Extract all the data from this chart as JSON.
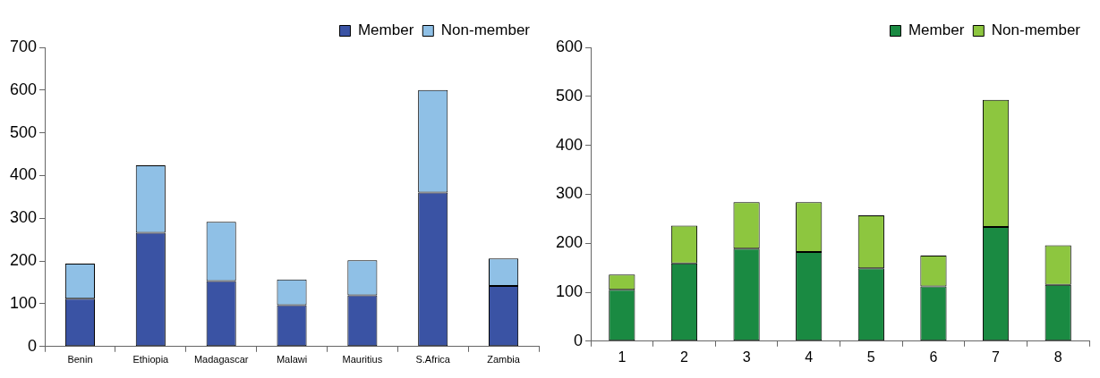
{
  "chart_data": [
    {
      "type": "bar",
      "stacked": true,
      "categories": [
        "Benin",
        "Ethiopia",
        "Madagascar",
        "Malawi",
        "Mauritius",
        "S.Africa",
        "Zambia"
      ],
      "ylim": [
        0,
        700
      ],
      "yticks": [
        0,
        100,
        200,
        300,
        400,
        500,
        600,
        700
      ],
      "grid": false,
      "legend": "top right",
      "series": [
        {
          "name": "Member",
          "color": "#3a53a4",
          "values": [
            112,
            266,
            153,
            97,
            120,
            360,
            142
          ]
        },
        {
          "name": "Non-member",
          "color": "#8fc0e6",
          "values": [
            82,
            158,
            139,
            60,
            82,
            240,
            64
          ]
        }
      ]
    },
    {
      "type": "bar",
      "stacked": true,
      "categories": [
        "1",
        "2",
        "3",
        "4",
        "5",
        "6",
        "7",
        "8"
      ],
      "ylim": [
        0,
        600
      ],
      "yticks": [
        0,
        100,
        200,
        300,
        400,
        500,
        600
      ],
      "grid": false,
      "legend": "top right",
      "series": [
        {
          "name": "Member",
          "color": "#1a8a42",
          "values": [
            105,
            159,
            189,
            182,
            149,
            112,
            233,
            115
          ]
        },
        {
          "name": "Non-member",
          "color": "#8dc63f",
          "values": [
            31,
            77,
            95,
            102,
            108,
            63,
            260,
            81
          ]
        }
      ]
    }
  ]
}
